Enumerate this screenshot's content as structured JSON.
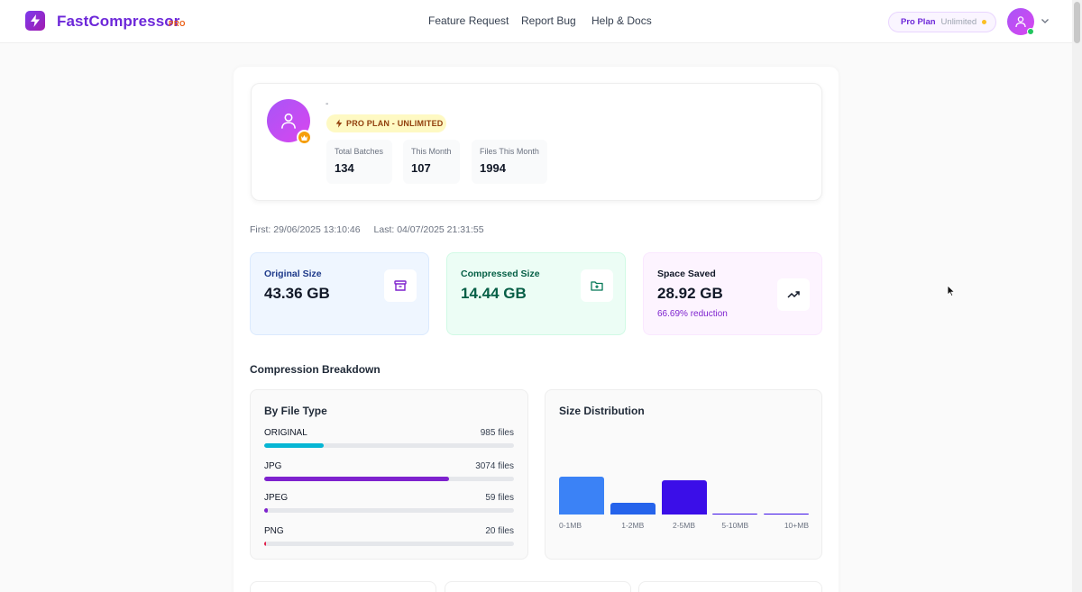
{
  "header": {
    "brand": "FastCompressor",
    "brand_tag": "PRO",
    "nav": [
      "Feature Request",
      "Report Bug",
      "Help & Docs"
    ],
    "plan_pill": {
      "plan": "Pro Plan",
      "status": "Unlimited"
    }
  },
  "profile": {
    "name": "-",
    "plan_badge": "PRO PLAN - UNLIMITED",
    "stats": [
      {
        "label": "Total Batches",
        "value": "134"
      },
      {
        "label": "This Month",
        "value": "107"
      },
      {
        "label": "Files This Month",
        "value": "1994"
      }
    ]
  },
  "dates": {
    "first": "First: 29/06/2025 13:10:46",
    "last": "Last: 04/07/2025 21:31:55"
  },
  "summary": [
    {
      "label": "Original Size",
      "value": "43.36 GB",
      "icon": "archive-icon",
      "color": "#1e3a8a"
    },
    {
      "label": "Compressed Size",
      "value": "14.44 GB",
      "icon": "folder-plus-icon",
      "color": "#065f46"
    },
    {
      "label": "Space Saved",
      "value": "28.92 GB",
      "sub": "66.69% reduction",
      "icon": "trending-up-icon",
      "color": "#111827"
    }
  ],
  "breakdown": {
    "title": "Compression Breakdown",
    "by_file_type": {
      "title": "By File Type",
      "rows": [
        {
          "name": "ORIGINAL",
          "count": "985 files",
          "fraction": 0.237,
          "color": "#06b6d4"
        },
        {
          "name": "JPG",
          "count": "3074 files",
          "fraction": 0.74,
          "color": "#7e22ce"
        },
        {
          "name": "JPEG",
          "count": "59 files",
          "fraction": 0.014,
          "color": "#7e22ce"
        },
        {
          "name": "PNG",
          "count": "20 files",
          "fraction": 0.005,
          "color": "#e11d48"
        }
      ]
    },
    "size_distribution": {
      "title": "Size Distribution"
    }
  },
  "chart_data": {
    "type": "bar",
    "title": "Size Distribution",
    "categories": [
      "0-1MB",
      "1-2MB",
      "2-5MB",
      "5-10MB",
      "10+MB"
    ],
    "values": [
      40,
      12,
      36,
      0,
      0
    ],
    "colors": [
      "#3b82f6",
      "#2563eb",
      "#3b0ee8",
      "#3b0ee8",
      "#3b0ee8"
    ],
    "xlabel": "",
    "ylabel": "",
    "grid": false
  }
}
